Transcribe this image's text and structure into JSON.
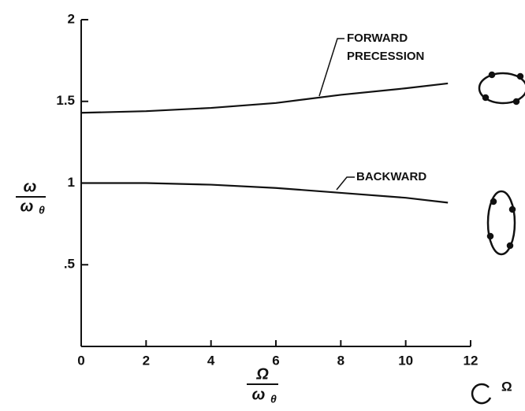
{
  "chart_data": {
    "type": "line",
    "x": [
      0,
      2,
      4,
      6,
      8,
      10,
      11.3
    ],
    "series": [
      {
        "color": "#111111",
        "values": [
          1.43,
          1.44,
          1.46,
          1.49,
          1.54,
          1.58,
          1.61
        ]
      },
      {
        "color": "#111111",
        "values": [
          1.0,
          1.0,
          0.99,
          0.97,
          0.94,
          0.91,
          0.88
        ]
      }
    ],
    "annotations": [
      {
        "lines": [
          "FORWARD",
          "PRECESSION"
        ]
      },
      {
        "lines": [
          "BACKWARD"
        ]
      }
    ],
    "y_label": {
      "numerator": "ω",
      "denominator": "ω",
      "subscript": "θ"
    },
    "x_label": {
      "numerator": "Ω",
      "denominator": "ω",
      "subscript": "θ"
    },
    "rotation_symbol": "Ω",
    "xlim": [
      0,
      12
    ],
    "xticks": [
      0,
      2,
      4,
      6,
      8,
      10,
      12
    ],
    "ylim": [
      0,
      2
    ],
    "yticks": [
      {
        "value": 0.5,
        "label": ".5"
      },
      1,
      1.5,
      2
    ]
  }
}
